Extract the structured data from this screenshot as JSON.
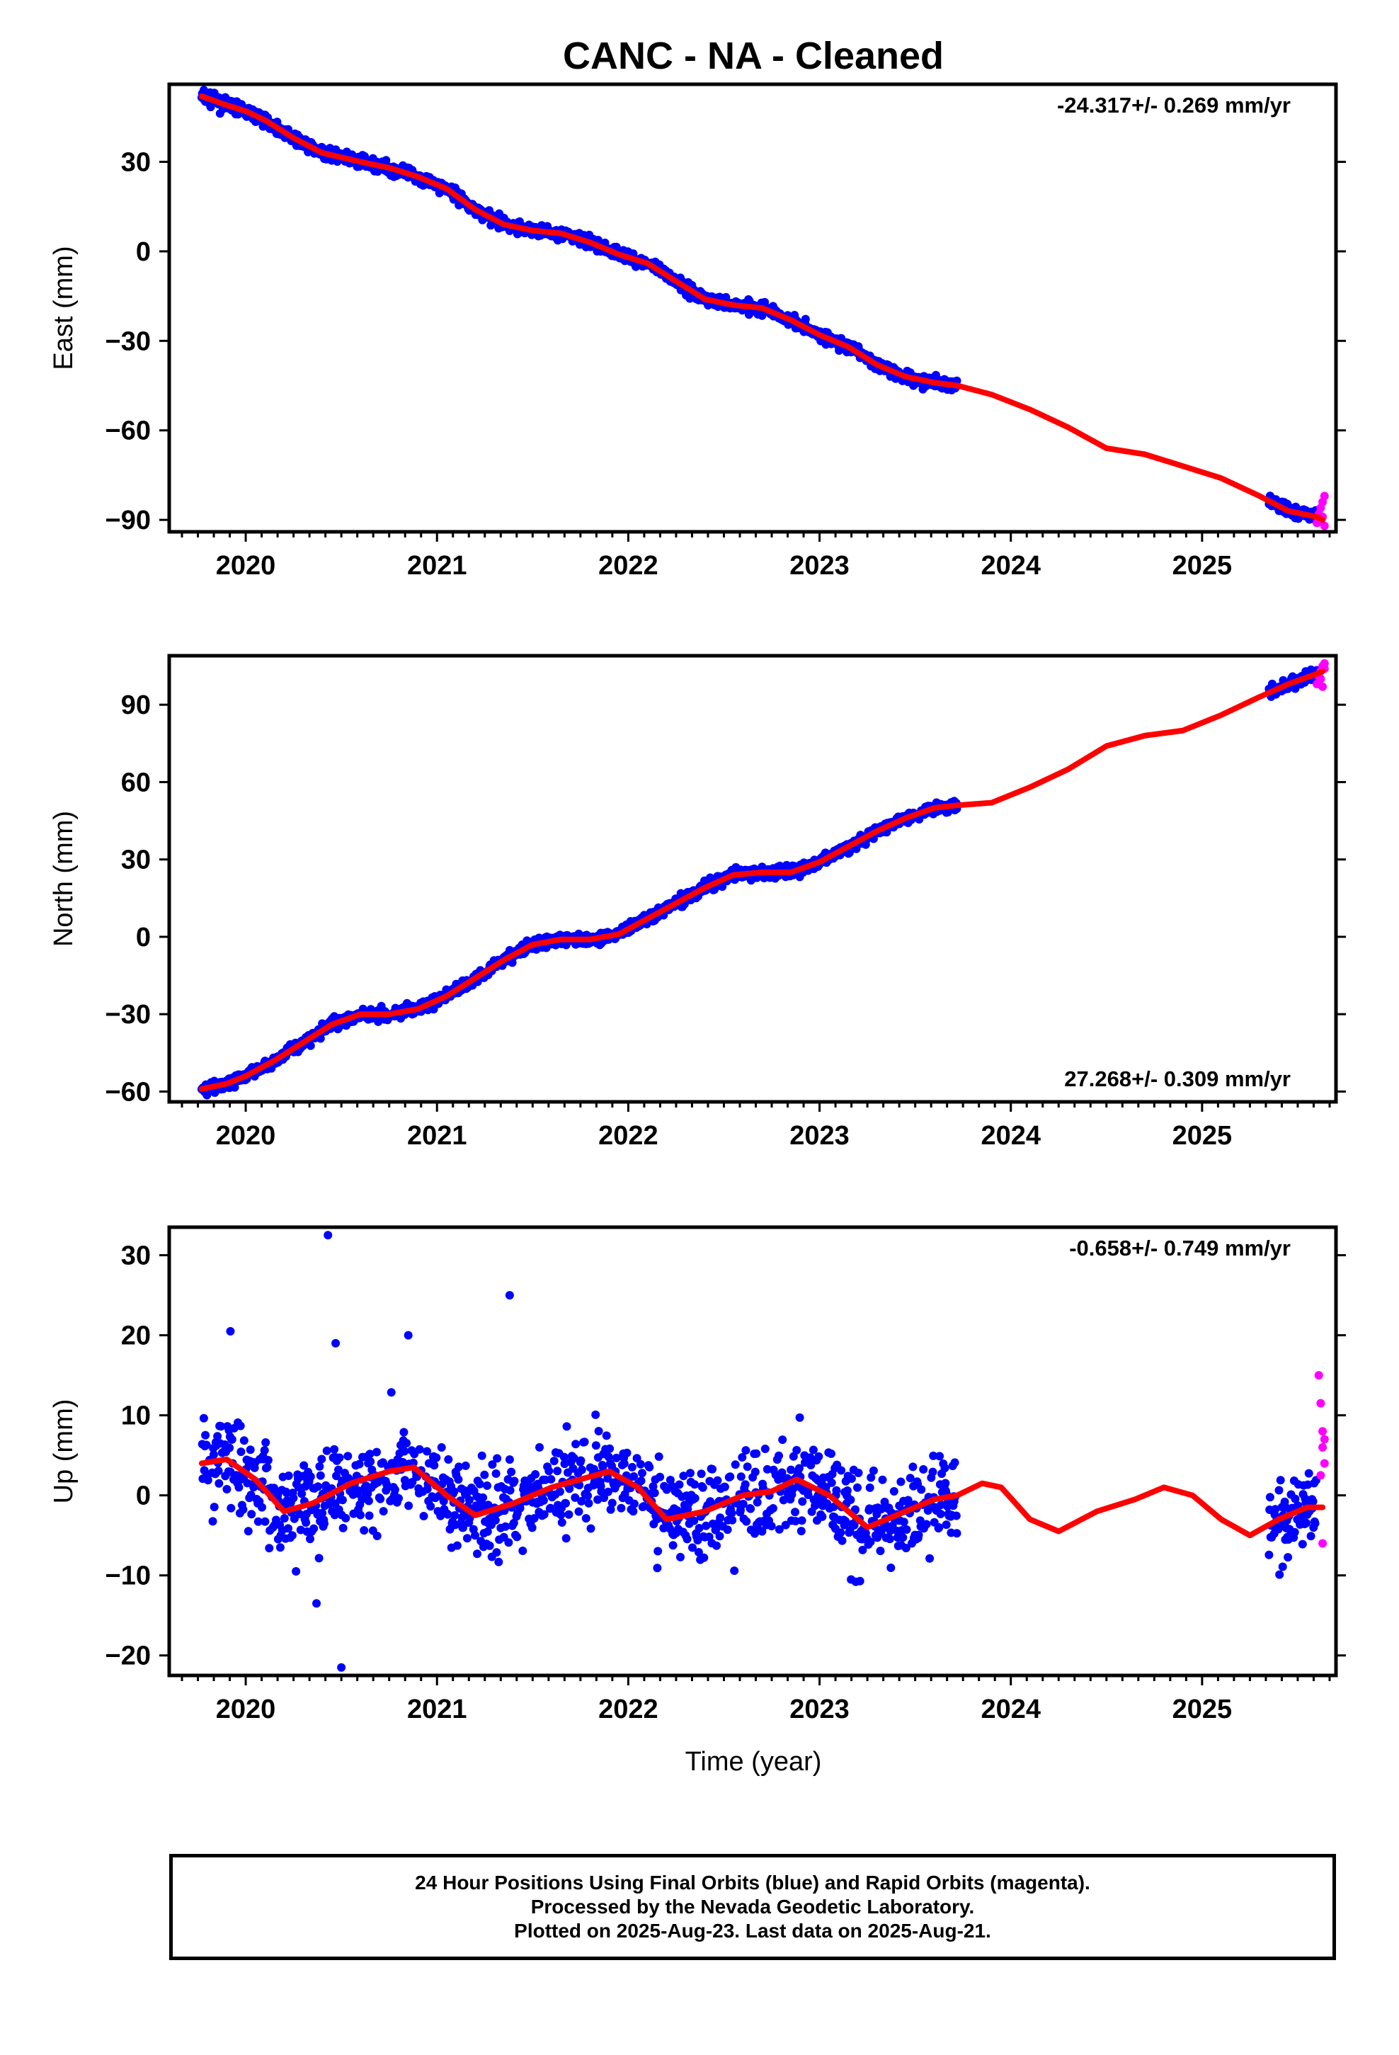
{
  "title": "CANC  - NA - Cleaned",
  "xlabel": "Time (year)",
  "colors": {
    "final": "#0000ff",
    "rapid": "#ff00ff",
    "model": "#ff0000",
    "axis": "#000000"
  },
  "footer": {
    "line1": "24 Hour Positions Using Final Orbits (blue) and Rapid Orbits (magenta).",
    "line2": "Processed by the Nevada Geodetic Laboratory.",
    "line3": "Plotted on 2025-Aug-23. Last data on 2025-Aug-21."
  },
  "chart_data": [
    {
      "type": "scatter",
      "component": "East",
      "ylabel": "East (mm)",
      "rate_label": "-24.317+/- 0.269 mm/yr",
      "rate_position": "top-right",
      "xlim": [
        2019.6,
        2025.7
      ],
      "ylim": [
        -94,
        56
      ],
      "x_ticks": [
        2020,
        2021,
        2022,
        2023,
        2024,
        2025
      ],
      "y_ticks": [
        30,
        0,
        -30,
        -60,
        -90
      ],
      "y_tick_labels": [
        "30",
        "0",
        "−30",
        "−60",
        "−90"
      ],
      "model_curve": {
        "x": [
          2019.77,
          2019.9,
          2020.0,
          2020.1,
          2020.25,
          2020.4,
          2020.6,
          2020.75,
          2020.9,
          2021.05,
          2021.2,
          2021.35,
          2021.5,
          2021.65,
          2021.8,
          2021.95,
          2022.1,
          2022.25,
          2022.4,
          2022.55,
          2022.7,
          2022.85,
          2023.0,
          2023.15,
          2023.3,
          2023.45,
          2023.6,
          2023.72,
          2023.9,
          2024.1,
          2024.3,
          2024.5,
          2024.7,
          2024.9,
          2025.1,
          2025.3,
          2025.45,
          2025.6,
          2025.63
        ],
        "y": [
          52,
          49,
          47,
          44,
          38,
          33,
          30,
          28,
          25,
          21,
          14,
          9,
          7,
          6,
          3,
          -1,
          -4,
          -10,
          -16,
          -18,
          -19,
          -23,
          -28,
          -32,
          -38,
          -42,
          -44,
          -45,
          -48,
          -53,
          -59,
          -66,
          -68,
          -72,
          -76,
          -82,
          -87,
          -89,
          -90
        ]
      },
      "final_segments": [
        {
          "x_start": 2019.77,
          "x_end": 2023.72,
          "scatter_mm": 1.4
        },
        {
          "x_start": 2025.35,
          "x_end": 2025.6,
          "scatter_mm": 1.5
        }
      ],
      "rapid_points": {
        "x": [
          2025.6,
          2025.61,
          2025.62,
          2025.63,
          2025.64,
          2025.62,
          2025.63,
          2025.64
        ],
        "y": [
          -91,
          -88,
          -86,
          -84,
          -82,
          -90,
          -89,
          -92
        ]
      }
    },
    {
      "type": "scatter",
      "component": "North",
      "ylabel": "North (mm)",
      "rate_label": "27.268+/- 0.309 mm/yr",
      "rate_position": "bottom-right",
      "xlim": [
        2019.6,
        2025.7
      ],
      "ylim": [
        -64,
        109
      ],
      "x_ticks": [
        2020,
        2021,
        2022,
        2023,
        2024,
        2025
      ],
      "y_ticks": [
        90,
        60,
        30,
        0,
        -30,
        -60
      ],
      "y_tick_labels": [
        "90",
        "60",
        "30",
        "0",
        "−30",
        "−60"
      ],
      "model_curve": {
        "x": [
          2019.77,
          2019.9,
          2020.0,
          2020.15,
          2020.3,
          2020.45,
          2020.6,
          2020.75,
          2020.9,
          2021.05,
          2021.2,
          2021.35,
          2021.5,
          2021.65,
          2021.8,
          2021.95,
          2022.1,
          2022.25,
          2022.4,
          2022.55,
          2022.7,
          2022.85,
          2023.0,
          2023.15,
          2023.3,
          2023.45,
          2023.6,
          2023.72,
          2023.9,
          2024.1,
          2024.3,
          2024.5,
          2024.7,
          2024.9,
          2025.1,
          2025.3,
          2025.45,
          2025.6,
          2025.63
        ],
        "y": [
          -59,
          -57,
          -54,
          -48,
          -41,
          -34,
          -30,
          -30,
          -28,
          -23,
          -16,
          -9,
          -3,
          -1,
          -1,
          1,
          7,
          13,
          19,
          24,
          25,
          25,
          29,
          35,
          41,
          46,
          50,
          51,
          52,
          58,
          65,
          74,
          78,
          80,
          86,
          93,
          98,
          102,
          103
        ]
      },
      "final_segments": [
        {
          "x_start": 2019.77,
          "x_end": 2023.72,
          "scatter_mm": 1.5
        },
        {
          "x_start": 2025.35,
          "x_end": 2025.6,
          "scatter_mm": 1.6
        }
      ],
      "rapid_points": {
        "x": [
          2025.6,
          2025.61,
          2025.62,
          2025.63,
          2025.64,
          2025.62,
          2025.63,
          2025.64
        ],
        "y": [
          98,
          101,
          103,
          105,
          104,
          100,
          97,
          106
        ]
      }
    },
    {
      "type": "scatter",
      "component": "Up",
      "ylabel": "Up (mm)",
      "rate_label": "-0.658+/- 0.749 mm/yr",
      "rate_position": "top-right",
      "xlim": [
        2019.6,
        2025.7
      ],
      "ylim": [
        -22.5,
        33.5
      ],
      "x_ticks": [
        2020,
        2021,
        2022,
        2023,
        2024,
        2025
      ],
      "y_ticks": [
        30,
        20,
        10,
        0,
        -10,
        -20
      ],
      "y_tick_labels": [
        "30",
        "20",
        "10",
        "0",
        "−10",
        "−20"
      ],
      "model_curve": {
        "x": [
          2019.77,
          2019.9,
          2020.05,
          2020.2,
          2020.35,
          2020.55,
          2020.75,
          2020.88,
          2021.05,
          2021.2,
          2021.4,
          2021.6,
          2021.75,
          2021.9,
          2022.05,
          2022.2,
          2022.4,
          2022.6,
          2022.75,
          2022.88,
          2023.05,
          2023.25,
          2023.45,
          2023.6,
          2023.72,
          2023.85,
          2023.95,
          2024.1,
          2024.25,
          2024.45,
          2024.65,
          2024.8,
          2024.95,
          2025.1,
          2025.25,
          2025.4,
          2025.55,
          2025.63
        ],
        "y": [
          4,
          4.5,
          2,
          -2,
          -1,
          1.5,
          3,
          3.5,
          0,
          -2.5,
          -1,
          1,
          2,
          3,
          1,
          -3,
          -2,
          0,
          0.5,
          2,
          0,
          -4,
          -2,
          -0.5,
          0,
          1.5,
          1,
          -3,
          -4.5,
          -2,
          -0.5,
          1,
          0,
          -3,
          -5,
          -3,
          -1.5,
          -1.5
        ]
      },
      "final_segments": [
        {
          "x_start": 2019.77,
          "x_end": 2023.72,
          "scatter_mm": 4.0
        },
        {
          "x_start": 2025.35,
          "x_end": 2025.6,
          "scatter_mm": 3.5
        }
      ],
      "outliers": {
        "x": [
          2020.43,
          2020.5,
          2020.85,
          2021.38,
          2019.92,
          2020.37,
          2020.47
        ],
        "y": [
          32.5,
          -21.5,
          20,
          25,
          20.5,
          -13.5,
          19
        ]
      },
      "rapid_points": {
        "x": [
          2025.61,
          2025.62,
          2025.63,
          2025.63,
          2025.64,
          2025.62,
          2025.63,
          2025.64
        ],
        "y": [
          15,
          11.5,
          8,
          6,
          4,
          2.5,
          -6,
          7
        ]
      }
    }
  ]
}
